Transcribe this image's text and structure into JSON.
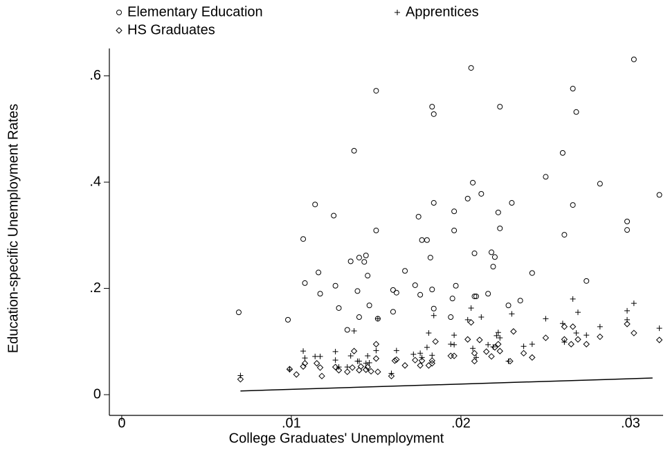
{
  "chart_data": {
    "type": "scatter",
    "x_label": "College Graduates' Unemployment",
    "y_label": "Education-specific Unemployment Rates",
    "xlim": [
      -0.00073,
      0.03192
    ],
    "ylim": [
      -0.039,
      0.6516
    ],
    "xticks": [
      {
        "value": 0,
        "label": "0"
      },
      {
        "value": 0.01,
        "label": ".01"
      },
      {
        "value": 0.02,
        "label": ".02"
      },
      {
        "value": 0.03,
        "label": ".03"
      }
    ],
    "yticks": [
      {
        "value": 0,
        "label": "0"
      },
      {
        "value": 0.2,
        "label": ".2"
      },
      {
        "value": 0.4,
        "label": ".4"
      },
      {
        "value": 0.6,
        "label": ".6"
      }
    ],
    "series": [
      {
        "name": "Elementary Education",
        "color": "#000000",
        "marker": "circle",
        "x": [
          0.0069,
          0.0098,
          0.0107,
          0.0108,
          0.0114,
          0.0116,
          0.0117,
          0.0125,
          0.0126,
          0.0128,
          0.0133,
          0.0135,
          0.0137,
          0.0139,
          0.014,
          0.014,
          0.0143,
          0.0144,
          0.0145,
          0.0146,
          0.015,
          0.015,
          0.0151,
          0.016,
          0.016,
          0.0162,
          0.0167,
          0.0173,
          0.0175,
          0.0176,
          0.0177,
          0.018,
          0.0182,
          0.0183,
          0.0183,
          0.0184,
          0.0184,
          0.0184,
          0.0194,
          0.0195,
          0.0196,
          0.0196,
          0.0197,
          0.0204,
          0.0206,
          0.0207,
          0.0208,
          0.0208,
          0.0209,
          0.0212,
          0.0216,
          0.0218,
          0.0219,
          0.022,
          0.0222,
          0.0223,
          0.0223,
          0.0228,
          0.023,
          0.0235,
          0.0242,
          0.025,
          0.026,
          0.0261,
          0.0266,
          0.0266,
          0.0268,
          0.0274,
          0.0282,
          0.0298,
          0.0298,
          0.0302,
          0.0317
        ],
        "values": [
          0.155,
          0.141,
          0.293,
          0.21,
          0.358,
          0.23,
          0.19,
          0.337,
          0.205,
          0.163,
          0.122,
          0.251,
          0.459,
          0.195,
          0.258,
          0.146,
          0.25,
          0.262,
          0.224,
          0.168,
          0.572,
          0.309,
          0.143,
          0.197,
          0.156,
          0.192,
          0.233,
          0.206,
          0.335,
          0.188,
          0.291,
          0.291,
          0.258,
          0.542,
          0.198,
          0.528,
          0.162,
          0.361,
          0.146,
          0.181,
          0.309,
          0.345,
          0.205,
          0.369,
          0.615,
          0.399,
          0.266,
          0.185,
          0.185,
          0.378,
          0.19,
          0.268,
          0.241,
          0.259,
          0.343,
          0.313,
          0.542,
          0.168,
          0.361,
          0.177,
          0.229,
          0.41,
          0.455,
          0.301,
          0.576,
          0.357,
          0.532,
          0.214,
          0.397,
          0.326,
          0.31,
          0.631,
          0.376
        ]
      },
      {
        "name": "Apprentices",
        "color": "#000000",
        "marker": "plus",
        "x": [
          0.007,
          0.0099,
          0.0107,
          0.0108,
          0.0114,
          0.0117,
          0.0126,
          0.0126,
          0.0128,
          0.0133,
          0.0135,
          0.0137,
          0.0139,
          0.014,
          0.0144,
          0.0145,
          0.0146,
          0.015,
          0.0151,
          0.0159,
          0.0162,
          0.0172,
          0.0176,
          0.0177,
          0.018,
          0.0181,
          0.0183,
          0.0184,
          0.0194,
          0.0196,
          0.0196,
          0.0204,
          0.0206,
          0.0207,
          0.0209,
          0.0212,
          0.0216,
          0.0219,
          0.0221,
          0.0222,
          0.0223,
          0.0228,
          0.023,
          0.0237,
          0.0242,
          0.025,
          0.026,
          0.0261,
          0.0266,
          0.0268,
          0.0269,
          0.0274,
          0.0282,
          0.0298,
          0.0298,
          0.0302,
          0.0317
        ],
        "values": [
          0.036,
          0.047,
          0.082,
          0.069,
          0.072,
          0.072,
          0.081,
          0.065,
          0.052,
          0.052,
          0.073,
          0.12,
          0.063,
          0.063,
          0.059,
          0.073,
          0.06,
          0.083,
          0.143,
          0.04,
          0.083,
          0.076,
          0.078,
          0.07,
          0.089,
          0.116,
          0.074,
          0.149,
          0.095,
          0.112,
          0.094,
          0.141,
          0.163,
          0.087,
          0.07,
          0.146,
          0.094,
          0.09,
          0.111,
          0.117,
          0.107,
          0.063,
          0.152,
          0.091,
          0.095,
          0.143,
          0.134,
          0.099,
          0.18,
          0.116,
          0.155,
          0.112,
          0.128,
          0.158,
          0.141,
          0.172,
          0.125
        ]
      },
      {
        "name": "HS Graduates",
        "color": "#000000",
        "marker": "diamond",
        "x": [
          0.007,
          0.0099,
          0.0103,
          0.0107,
          0.0108,
          0.0115,
          0.0117,
          0.0118,
          0.0126,
          0.0128,
          0.0133,
          0.0136,
          0.0137,
          0.014,
          0.0141,
          0.0144,
          0.0145,
          0.0147,
          0.015,
          0.015,
          0.0151,
          0.0159,
          0.0161,
          0.0162,
          0.0167,
          0.0173,
          0.0176,
          0.0177,
          0.0181,
          0.0183,
          0.0185,
          0.0183,
          0.0194,
          0.0196,
          0.0204,
          0.0206,
          0.0208,
          0.0208,
          0.0211,
          0.0215,
          0.0218,
          0.022,
          0.0222,
          0.0223,
          0.0229,
          0.0231,
          0.0237,
          0.0242,
          0.025,
          0.0261,
          0.0261,
          0.0265,
          0.0266,
          0.0269,
          0.0274,
          0.0282,
          0.0298,
          0.0302,
          0.0317
        ],
        "values": [
          0.029,
          0.048,
          0.038,
          0.053,
          0.059,
          0.059,
          0.051,
          0.035,
          0.052,
          0.046,
          0.043,
          0.051,
          0.082,
          0.046,
          0.053,
          0.047,
          0.052,
          0.044,
          0.095,
          0.068,
          0.043,
          0.035,
          0.064,
          0.066,
          0.055,
          0.065,
          0.055,
          0.064,
          0.055,
          0.064,
          0.1,
          0.059,
          0.073,
          0.073,
          0.104,
          0.136,
          0.078,
          0.063,
          0.103,
          0.081,
          0.072,
          0.089,
          0.095,
          0.082,
          0.063,
          0.119,
          0.078,
          0.07,
          0.107,
          0.128,
          0.104,
          0.095,
          0.128,
          0.104,
          0.095,
          0.109,
          0.133,
          0.116,
          0.103
        ]
      }
    ],
    "line": {
      "x": [
        0.007,
        0.0313
      ],
      "values": [
        0.007,
        0.0313
      ],
      "color": "#000000"
    }
  }
}
